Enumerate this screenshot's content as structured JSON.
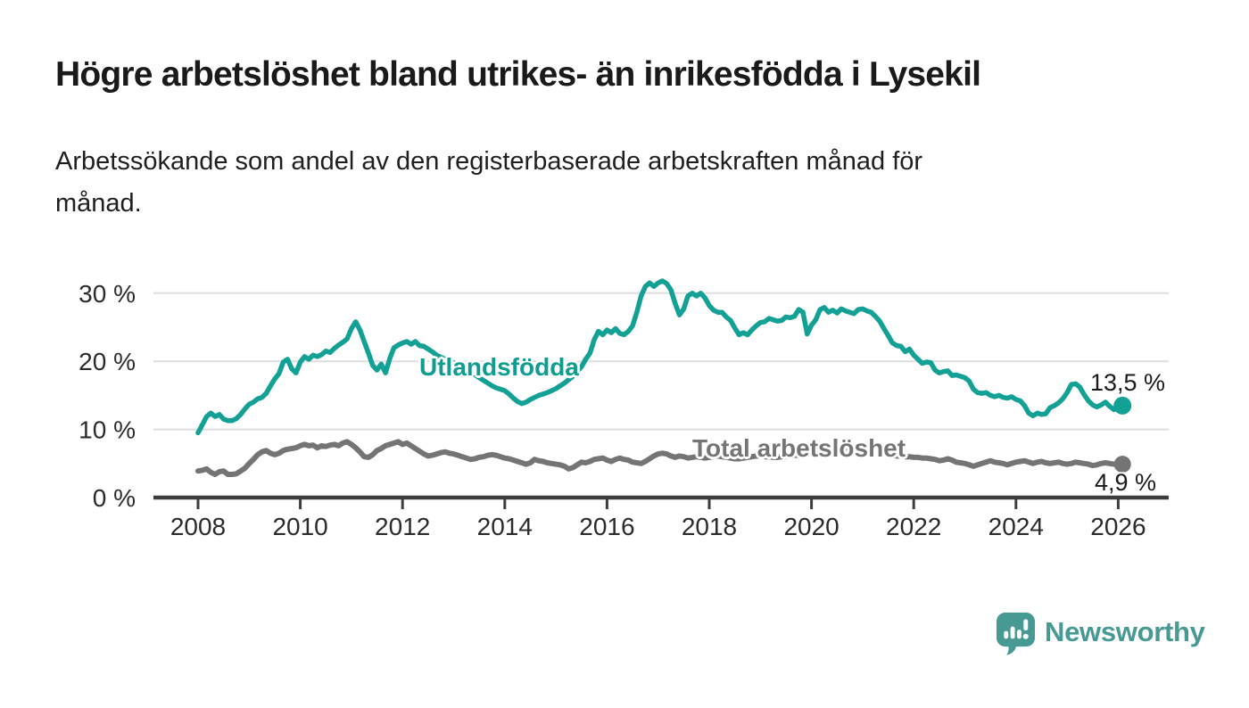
{
  "header": {
    "title": "Högre arbetslöshet bland utrikes- än inrikesfödda i Lysekil",
    "subtitle_line1": "Arbetssökande som andel av den registerbaserade arbetskraften månad för",
    "subtitle_line2": "månad."
  },
  "colors": {
    "accent_teal": "#14a195",
    "line_gray": "#747474",
    "grid": "#dedede",
    "axis": "#3d3d3d",
    "axis_text": "#2b2b2b",
    "annotation_text": "#1a1a1a",
    "brand_teal": "#479a93"
  },
  "chart_data": {
    "type": "line",
    "title": "Högre arbetslöshet bland utrikes- än inrikesfödda i Lysekil",
    "subtitle": "Arbetssökande som andel av den registerbaserade arbetskraften månad för månad.",
    "x_axis": {
      "ticks": [
        2008,
        2010,
        2012,
        2014,
        2016,
        2018,
        2020,
        2022,
        2024,
        2026
      ],
      "tick_labels": [
        "2008",
        "2010",
        "2012",
        "2014",
        "2016",
        "2018",
        "2020",
        "2022",
        "2024",
        "2026"
      ],
      "range": [
        2007.1,
        2027.0
      ]
    },
    "y_axis": {
      "ticks": [
        0,
        10,
        20,
        30
      ],
      "tick_labels": [
        "0 %",
        "10 %",
        "20 %",
        "30 %"
      ],
      "range": [
        0,
        33.5
      ],
      "grid": true
    },
    "legend_position": "inline-labels",
    "series": [
      {
        "name": "Utlandsfödda",
        "color": "#14a195",
        "end_label": "13,5 %",
        "end_value": 13.5,
        "start_year": 2008.0,
        "cadence": "monthly",
        "values": [
          9.5,
          10.7,
          11.9,
          12.4,
          11.9,
          12.2,
          11.5,
          11.3,
          11.3,
          11.6,
          12.2,
          13.0,
          13.7,
          14.0,
          14.5,
          14.7,
          15.3,
          16.4,
          17.4,
          18.2,
          19.9,
          20.3,
          18.9,
          18.3,
          19.9,
          20.7,
          20.3,
          20.9,
          20.7,
          21.0,
          21.5,
          21.3,
          21.9,
          22.4,
          22.8,
          23.3,
          24.8,
          25.8,
          24.6,
          22.9,
          21.2,
          19.4,
          18.7,
          19.6,
          18.3,
          20.4,
          22.0,
          22.4,
          22.7,
          22.9,
          22.5,
          22.9,
          22.3,
          22.2,
          21.8,
          21.4,
          20.9,
          20.6,
          20.3,
          20.0,
          19.8,
          19.5,
          19.2,
          18.9,
          18.4,
          18.0,
          17.6,
          17.2,
          16.8,
          16.4,
          16.1,
          15.9,
          15.7,
          15.2,
          14.6,
          14.1,
          13.8,
          14.0,
          14.4,
          14.7,
          15.0,
          15.2,
          15.4,
          15.7,
          16.0,
          16.4,
          16.8,
          17.3,
          17.8,
          18.5,
          19.2,
          20.3,
          21.2,
          23.2,
          24.4,
          23.9,
          24.6,
          24.2,
          24.8,
          24.1,
          23.9,
          24.4,
          25.2,
          27.2,
          29.6,
          31.0,
          31.5,
          31.0,
          31.5,
          31.8,
          31.4,
          30.5,
          28.5,
          26.8,
          27.7,
          29.6,
          30.0,
          29.6,
          30.0,
          29.3,
          28.2,
          27.5,
          27.2,
          27.2,
          26.5,
          26.0,
          24.9,
          23.9,
          24.2,
          23.9,
          24.6,
          25.2,
          25.7,
          25.8,
          26.3,
          26.1,
          25.9,
          26.0,
          26.5,
          26.4,
          26.6,
          27.6,
          27.2,
          24.0,
          25.3,
          26.1,
          27.6,
          27.9,
          27.2,
          27.5,
          27.1,
          27.7,
          27.4,
          27.2,
          27.0,
          27.6,
          27.7,
          27.4,
          27.2,
          26.6,
          25.9,
          24.8,
          23.8,
          22.7,
          22.3,
          22.2,
          21.4,
          21.8,
          20.9,
          20.3,
          19.7,
          19.9,
          19.8,
          18.7,
          18.3,
          18.5,
          18.6,
          17.9,
          18.0,
          17.8,
          17.6,
          17.1,
          15.9,
          15.4,
          15.3,
          15.4,
          15.0,
          14.8,
          15.0,
          14.7,
          14.6,
          14.8,
          14.4,
          14.2,
          13.5,
          12.4,
          12.0,
          12.4,
          12.2,
          12.3,
          13.2,
          13.5,
          13.9,
          14.5,
          15.4,
          16.6,
          16.7,
          16.2,
          15.1,
          14.2,
          13.6,
          13.3,
          13.6,
          14.0,
          13.4,
          12.9,
          13.3,
          13.5
        ]
      },
      {
        "name": "Total arbetslöshet",
        "color": "#747474",
        "end_label": "4,9 %",
        "end_value": 4.9,
        "start_year": 2008.0,
        "cadence": "monthly",
        "values": [
          3.9,
          4.0,
          4.2,
          3.7,
          3.4,
          3.8,
          3.9,
          3.4,
          3.4,
          3.5,
          3.9,
          4.3,
          5.0,
          5.6,
          6.3,
          6.7,
          6.9,
          6.5,
          6.3,
          6.5,
          6.9,
          7.1,
          7.2,
          7.3,
          7.6,
          7.8,
          7.6,
          7.7,
          7.3,
          7.6,
          7.5,
          7.7,
          7.8,
          7.6,
          8.0,
          8.2,
          7.8,
          7.3,
          6.7,
          6.0,
          5.9,
          6.3,
          6.9,
          7.2,
          7.6,
          7.8,
          8.0,
          8.2,
          7.8,
          8.0,
          7.6,
          7.2,
          6.8,
          6.4,
          6.1,
          6.2,
          6.4,
          6.6,
          6.7,
          6.5,
          6.4,
          6.2,
          6.0,
          5.8,
          5.6,
          5.7,
          5.9,
          6.0,
          6.2,
          6.3,
          6.2,
          6.0,
          5.8,
          5.7,
          5.5,
          5.3,
          5.1,
          4.9,
          5.1,
          5.6,
          5.4,
          5.3,
          5.1,
          5.0,
          4.9,
          4.8,
          4.6,
          4.2,
          4.4,
          4.8,
          5.2,
          5.1,
          5.3,
          5.6,
          5.7,
          5.8,
          5.5,
          5.3,
          5.6,
          5.8,
          5.6,
          5.5,
          5.2,
          5.1,
          5.0,
          5.3,
          5.7,
          6.1,
          6.4,
          6.5,
          6.4,
          6.1,
          5.9,
          6.1,
          6.0,
          5.8,
          5.9,
          6.0,
          5.9,
          5.8,
          5.9,
          6.0,
          6.1,
          6.0,
          5.9,
          5.8,
          5.7,
          5.7,
          5.8,
          5.9,
          6.0,
          6.1,
          6.1,
          6.0,
          6.0,
          5.9,
          5.9,
          6.0,
          6.1,
          6.1,
          6.2,
          6.2,
          6.3,
          6.4,
          6.6,
          6.9,
          7.1,
          7.3,
          7.4,
          7.5,
          7.5,
          7.4,
          7.3,
          7.2,
          7.1,
          7.0,
          6.9,
          6.8,
          6.7,
          6.6,
          6.5,
          6.4,
          6.3,
          6.2,
          6.1,
          6.1,
          6.0,
          6.0,
          5.9,
          5.9,
          5.8,
          5.8,
          5.7,
          5.6,
          5.4,
          5.5,
          5.7,
          5.5,
          5.2,
          5.1,
          5.0,
          4.8,
          4.6,
          4.8,
          5.0,
          5.2,
          5.4,
          5.2,
          5.1,
          5.0,
          4.8,
          5.0,
          5.2,
          5.3,
          5.4,
          5.2,
          5.0,
          5.2,
          5.3,
          5.1,
          5.0,
          5.1,
          5.2,
          5.0,
          4.9,
          5.0,
          5.2,
          5.1,
          5.0,
          4.9,
          4.7,
          4.8,
          5.0,
          5.1,
          5.0,
          4.9,
          4.9,
          4.9
        ]
      }
    ]
  },
  "footer": {
    "brand": "Newsworthy",
    "logo_icon": "speech-bubble-bar-chart-icon"
  }
}
